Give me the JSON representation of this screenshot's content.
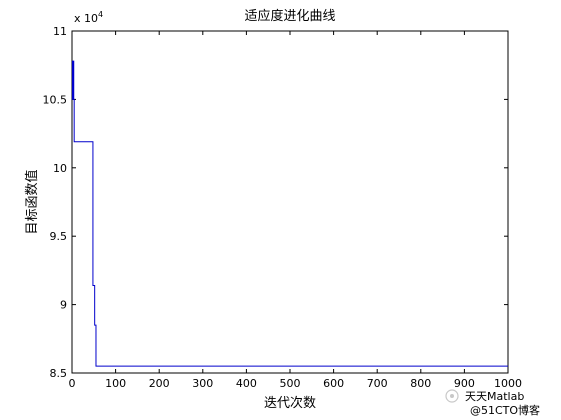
{
  "chart_data": {
    "type": "line",
    "title": "适应度进化曲线",
    "xlabel": "迭代次数",
    "ylabel": "目标函数值",
    "xlim": [
      0,
      1000
    ],
    "ylim": [
      8.5,
      11
    ],
    "x_ticks": [
      0,
      100,
      200,
      300,
      400,
      500,
      600,
      700,
      800,
      900,
      1000
    ],
    "y_ticks": [
      8.5,
      9,
      9.5,
      10,
      10.5,
      11
    ],
    "y_tick_labels": [
      "8.5",
      "9",
      "9.5",
      "10",
      "10.5",
      "11"
    ],
    "y_multiplier_base": "x 10",
    "y_multiplier_exponent": "4",
    "grid": false,
    "line_color": "#0000cc",
    "series": [
      {
        "step": true,
        "x": [
          0,
          1,
          2,
          4,
          5,
          47,
          48,
          51,
          52,
          55,
          1000
        ],
        "y": [
          10.78,
          10.5,
          10.78,
          10.5,
          10.19,
          10.19,
          9.14,
          9.14,
          8.85,
          8.55,
          8.55
        ]
      }
    ]
  },
  "watermark": {
    "line1": "天天Matlab",
    "line2": "@51CTO博客"
  }
}
